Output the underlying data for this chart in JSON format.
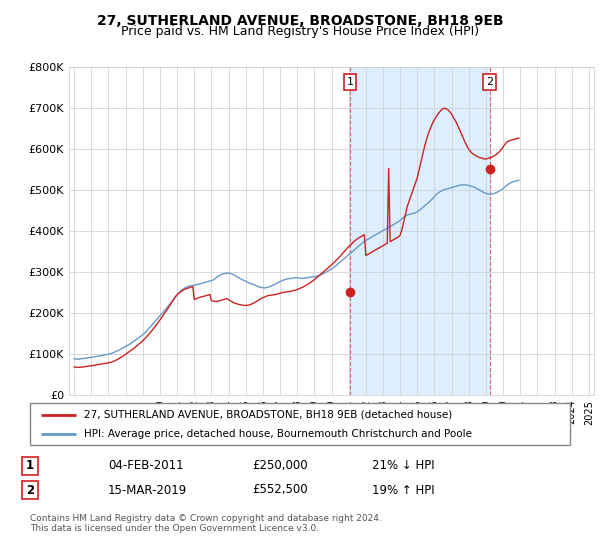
{
  "title": "27, SUTHERLAND AVENUE, BROADSTONE, BH18 9EB",
  "subtitle": "Price paid vs. HM Land Registry's House Price Index (HPI)",
  "title_fontsize": 10,
  "subtitle_fontsize": 9,
  "ylim": [
    0,
    800000
  ],
  "yticks": [
    0,
    100000,
    200000,
    300000,
    400000,
    500000,
    600000,
    700000,
    800000
  ],
  "ytick_labels": [
    "£0",
    "£100K",
    "£200K",
    "£300K",
    "£400K",
    "£500K",
    "£600K",
    "£700K",
    "£800K"
  ],
  "xlim_start": 1994.7,
  "xlim_end": 2025.3,
  "hpi_color": "#6699cc",
  "price_color": "#cc2222",
  "highlight_color": "#ddeeff",
  "transaction1_x": 2011.09,
  "transaction1_y": 250000,
  "transaction2_x": 2019.21,
  "transaction2_y": 552500,
  "legend_line1": "27, SUTHERLAND AVENUE, BROADSTONE, BH18 9EB (detached house)",
  "legend_line2": "HPI: Average price, detached house, Bournemouth Christchurch and Poole",
  "table_row1": [
    "1",
    "04-FEB-2011",
    "£250,000",
    "21% ↓ HPI"
  ],
  "table_row2": [
    "2",
    "15-MAR-2019",
    "£552,500",
    "19% ↑ HPI"
  ],
  "footer": "Contains HM Land Registry data © Crown copyright and database right 2024.\nThis data is licensed under the Open Government Licence v3.0.",
  "hpi_monthly": {
    "start_year": 1995,
    "start_month": 1,
    "values": [
      88000,
      87500,
      87200,
      87000,
      87500,
      88000,
      88500,
      89000,
      89500,
      90000,
      90500,
      91000,
      91500,
      92000,
      92800,
      93500,
      94000,
      94500,
      95000,
      95800,
      96500,
      97200,
      98000,
      98500,
      99000,
      100000,
      101000,
      102500,
      104000,
      105500,
      107000,
      108500,
      110000,
      112000,
      114000,
      116000,
      118000,
      120000,
      122000,
      124000,
      126500,
      129000,
      131500,
      134000,
      136500,
      139000,
      141500,
      144000,
      147000,
      150000,
      153500,
      157000,
      161000,
      165000,
      169000,
      173000,
      177000,
      181000,
      185000,
      189000,
      193000,
      197000,
      201000,
      205000,
      209000,
      213000,
      217500,
      222000,
      226500,
      231000,
      235500,
      240000,
      244000,
      248000,
      251500,
      255000,
      257500,
      260000,
      262000,
      264000,
      265000,
      266000,
      266500,
      267000,
      267500,
      268000,
      269000,
      270000,
      271000,
      272000,
      273000,
      274000,
      275000,
      276000,
      277000,
      278000,
      279000,
      280000,
      282000,
      285000,
      287500,
      290000,
      292000,
      294000,
      295000,
      296000,
      296500,
      297000,
      297000,
      296500,
      295500,
      294000,
      292000,
      290000,
      288000,
      286000,
      284000,
      282000,
      280500,
      279000,
      277000,
      275500,
      274000,
      272500,
      271000,
      270000,
      268500,
      267000,
      265500,
      264000,
      263000,
      262000,
      261500,
      261000,
      261500,
      262000,
      263000,
      264500,
      266000,
      267500,
      269000,
      271000,
      273000,
      275000,
      276500,
      278000,
      279500,
      281000,
      282000,
      283000,
      283500,
      284000,
      284500,
      285000,
      285500,
      286000,
      285500,
      285000,
      284500,
      284000,
      284500,
      285000,
      285500,
      286000,
      286500,
      287000,
      287500,
      288000,
      288500,
      289000,
      290000,
      291000,
      292500,
      294000,
      295500,
      297000,
      299000,
      301000,
      303000,
      305000,
      307000,
      309500,
      312000,
      315000,
      318000,
      321000,
      324000,
      327000,
      330000,
      333000,
      336000,
      339000,
      342000,
      345000,
      348000,
      351000,
      354000,
      357000,
      360000,
      363000,
      366000,
      369000,
      372000,
      375000,
      377000,
      379000,
      381000,
      383000,
      385000,
      387000,
      389000,
      391000,
      393000,
      395000,
      397000,
      399000,
      401000,
      403000,
      405000,
      407000,
      409000,
      411000,
      413000,
      415000,
      417000,
      419000,
      421000,
      423000,
      426000,
      429000,
      432000,
      435000,
      437000,
      439000,
      440000,
      441000,
      442000,
      443000,
      444000,
      445000,
      447000,
      449500,
      452000,
      455000,
      458000,
      461000,
      464000,
      467000,
      470000,
      473000,
      476500,
      480000,
      484000,
      488000,
      491000,
      494000,
      496000,
      498000,
      500000,
      501000,
      502000,
      503000,
      504000,
      505000,
      506000,
      507000,
      508000,
      509000,
      510000,
      511000,
      512000,
      512500,
      513000,
      513000,
      512500,
      512000,
      511000,
      510000,
      509000,
      508000,
      506500,
      505000,
      503000,
      501000,
      499000,
      497000,
      495000,
      493000,
      492000,
      491000,
      490000,
      490000,
      490500,
      491000,
      492000,
      493500,
      495000,
      497000,
      499000,
      501000,
      504000,
      507000,
      510000,
      513000,
      515000,
      517000,
      519000,
      520000,
      521000,
      522000,
      523000,
      524000
    ]
  },
  "price_monthly": {
    "start_year": 1995,
    "start_month": 1,
    "values": [
      68000,
      67500,
      67200,
      67000,
      67200,
      67500,
      68000,
      68500,
      69000,
      69500,
      70000,
      70500,
      71000,
      71500,
      72000,
      72800,
      73500,
      74000,
      74500,
      75000,
      75800,
      76500,
      77000,
      77500,
      78000,
      78800,
      79800,
      81000,
      82500,
      84000,
      86000,
      88000,
      90000,
      92000,
      94000,
      96500,
      99000,
      101500,
      104000,
      106500,
      109000,
      111500,
      114000,
      117000,
      120000,
      123000,
      126000,
      129000,
      132000,
      135500,
      139000,
      143000,
      147000,
      151000,
      155000,
      159500,
      164000,
      168500,
      173000,
      178000,
      183000,
      188000,
      193000,
      198000,
      203000,
      208000,
      213000,
      218500,
      224000,
      229500,
      235000,
      240500,
      244000,
      247500,
      250500,
      253000,
      255000,
      257000,
      258500,
      260000,
      261000,
      262000,
      263000,
      264000,
      233000,
      234000,
      235500,
      237000,
      238000,
      239000,
      240000,
      241000,
      242000,
      243000,
      244000,
      245000,
      230000,
      229000,
      228500,
      228000,
      228500,
      229000,
      230000,
      231000,
      232000,
      233000,
      234000,
      235000,
      232000,
      230000,
      228000,
      226000,
      224500,
      223000,
      222000,
      221000,
      220000,
      219500,
      219000,
      218500,
      218000,
      218500,
      219000,
      220000,
      221500,
      223000,
      225000,
      227000,
      229000,
      231000,
      233500,
      235500,
      237000,
      238500,
      240000,
      241500,
      242500,
      243000,
      243500,
      244000,
      244500,
      245000,
      246000,
      247000,
      248000,
      249000,
      250000,
      250500,
      251000,
      251500,
      252000,
      252500,
      253000,
      254000,
      255000,
      256000,
      257000,
      258500,
      260000,
      261500,
      263000,
      265000,
      267000,
      269000,
      271000,
      273500,
      276000,
      278500,
      281000,
      284000,
      287000,
      290000,
      293000,
      296000,
      299000,
      302000,
      305000,
      308000,
      311000,
      314000,
      317000,
      320500,
      324000,
      327500,
      331000,
      334500,
      338000,
      342000,
      346000,
      350000,
      354000,
      358000,
      361500,
      365000,
      368500,
      372000,
      375000,
      378000,
      380500,
      383000,
      385000,
      387000,
      389000,
      391000,
      340000,
      342000,
      344000,
      346000,
      348000,
      350000,
      352000,
      354000,
      356000,
      358000,
      360000,
      362000,
      364000,
      366000,
      368000,
      370000,
      552500,
      374000,
      376000,
      378000,
      380000,
      382000,
      384000,
      386000,
      390000,
      400000,
      415000,
      430000,
      445000,
      460000,
      470000,
      480000,
      490000,
      500000,
      510000,
      520000,
      530000,
      545000,
      560000,
      575000,
      590000,
      605000,
      618000,
      630000,
      640000,
      650000,
      658000,
      666000,
      672000,
      678000,
      683000,
      688000,
      692000,
      696000,
      699000,
      700000,
      699000,
      697000,
      694000,
      690000,
      685000,
      679000,
      673000,
      667000,
      660000,
      652000,
      644000,
      636000,
      628000,
      620000,
      613000,
      606000,
      600000,
      595000,
      591000,
      588000,
      586000,
      584000,
      582000,
      580000,
      579000,
      578000,
      577000,
      576000,
      576000,
      577000,
      578000,
      579000,
      580000,
      582000,
      584000,
      586000,
      589000,
      592000,
      596000,
      600000,
      605000,
      610000,
      615000,
      618000,
      620000,
      621000,
      622000,
      623000,
      624000,
      625000,
      626000,
      627000
    ]
  }
}
